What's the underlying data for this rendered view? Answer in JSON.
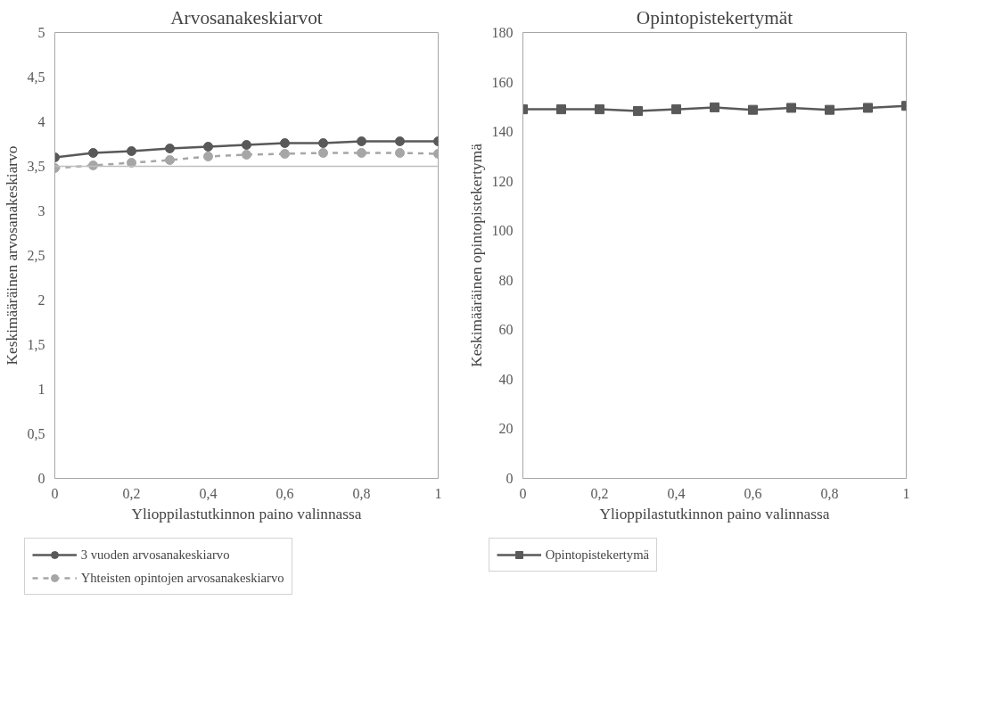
{
  "chart_data": [
    {
      "type": "line",
      "title": "Arvosanakeskiarvot",
      "xlabel": "Ylioppilastutkinnon paino valinnassa",
      "ylabel": "Keskimääräinen arvosanakeskiarvo",
      "x": [
        0,
        0.1,
        0.2,
        0.3,
        0.4,
        0.5,
        0.6,
        0.7,
        0.8,
        0.9,
        1
      ],
      "series": [
        {
          "name": "3 vuoden arvosanakeskiarvo",
          "color": "#595959",
          "marker": "circle",
          "line_style": "solid",
          "values": [
            3.6,
            3.65,
            3.67,
            3.7,
            3.72,
            3.74,
            3.76,
            3.76,
            3.78,
            3.78,
            3.78
          ]
        },
        {
          "name": "Yhteisten opintojen arvosanakeskiarvo",
          "color": "#a6a6a6",
          "marker": "circle",
          "line_style": "dashed",
          "values": [
            3.48,
            3.51,
            3.54,
            3.57,
            3.61,
            3.63,
            3.64,
            3.65,
            3.65,
            3.65,
            3.64
          ]
        }
      ],
      "ref_lines": [
        {
          "axis": "y",
          "value": 3.5,
          "label": null,
          "color": "#bfbfbf"
        }
      ],
      "xlim": [
        0,
        1
      ],
      "xticks": [
        0,
        {
          "value": 0.2,
          "label": "0,2"
        },
        {
          "value": 0.4,
          "label": "0,4"
        },
        {
          "value": 0.6,
          "label": "0,6"
        },
        {
          "value": 0.8,
          "label": "0,8"
        },
        1
      ],
      "ylim": [
        0,
        5
      ],
      "yticks": [
        0,
        {
          "value": 0.5,
          "label": "0,5"
        },
        1,
        {
          "value": 1.5,
          "label": "1,5"
        },
        2,
        {
          "value": 2.5,
          "label": "2,5"
        },
        3,
        {
          "value": 3.5,
          "label": "3,5"
        },
        4,
        {
          "value": 4.5,
          "label": "4,5"
        },
        5
      ],
      "grid": false,
      "legend": "bottom"
    },
    {
      "type": "line",
      "title": "Opintopistekertymät",
      "xlabel": "Ylioppilastutkinnon paino valinnassa",
      "ylabel": "Keskimääräinen opintopistekertymä",
      "x": [
        0,
        0.1,
        0.2,
        0.3,
        0.4,
        0.5,
        0.6,
        0.7,
        0.8,
        0.9,
        1
      ],
      "series": [
        {
          "name": "Opintopistekertymä",
          "color": "#595959",
          "marker": "square",
          "line_style": "solid",
          "values": [
            149,
            149,
            149,
            148.3,
            149,
            149.8,
            148.8,
            149.6,
            148.8,
            149.6,
            150.4
          ]
        }
      ],
      "xlim": [
        0,
        1
      ],
      "xticks": [
        0,
        {
          "value": 0.2,
          "label": "0,2"
        },
        {
          "value": 0.4,
          "label": "0,4"
        },
        {
          "value": 0.6,
          "label": "0,6"
        },
        {
          "value": 0.8,
          "label": "0,8"
        },
        1
      ],
      "ylim": [
        0,
        180
      ],
      "yticks": [
        0,
        20,
        40,
        60,
        80,
        100,
        120,
        140,
        160,
        180
      ],
      "grid": false,
      "legend": "bottom"
    }
  ]
}
